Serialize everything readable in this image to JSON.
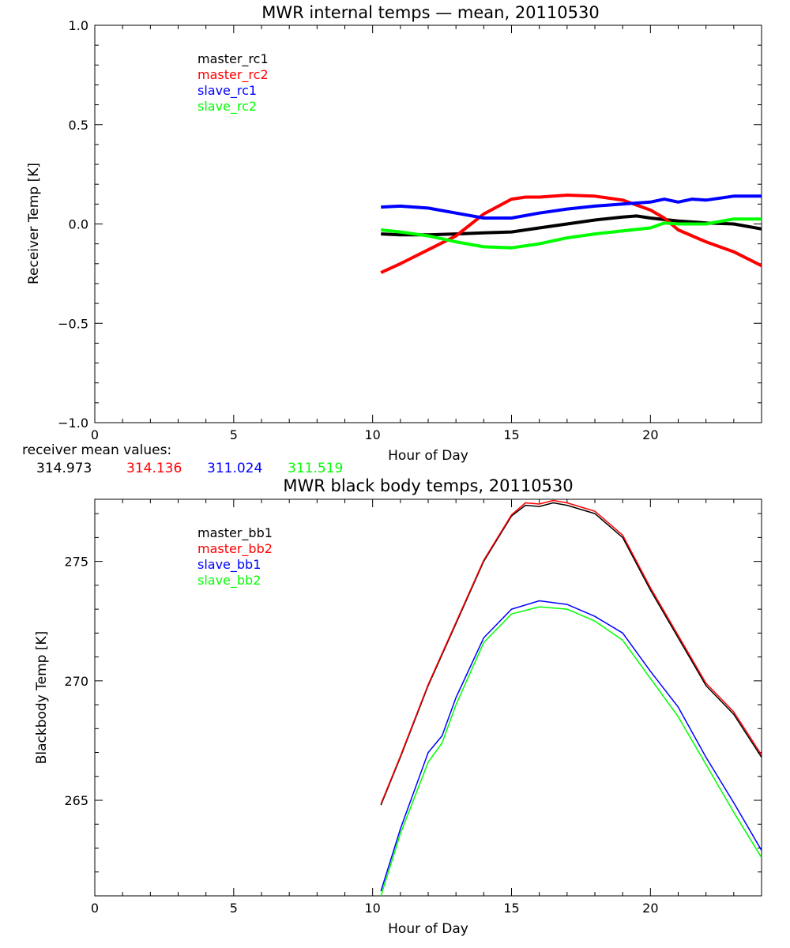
{
  "chart_data": [
    {
      "type": "line",
      "title": "MWR internal temps — mean, 20110530",
      "xlabel": "Hour of Day",
      "ylabel": "Receiver Temp [K]",
      "xlim": [
        0,
        24
      ],
      "ylim": [
        -1.0,
        1.0
      ],
      "x_ticks": [
        0,
        5,
        10,
        15,
        20
      ],
      "x_tick_labels": [
        "0",
        "5",
        "10",
        "15",
        "20"
      ],
      "y_ticks": [
        1.0,
        0.5,
        0.0,
        -0.5,
        -1.0
      ],
      "y_tick_labels": [
        "1.0",
        "0.5",
        "0.0",
        "−0.5",
        "−1.0"
      ],
      "grid": false,
      "legend_position": "top-left",
      "series": [
        {
          "name": "master_rc1",
          "color": "#000000",
          "x": [
            10.3,
            11,
            12,
            13,
            14,
            15,
            16,
            17,
            18,
            19,
            19.5,
            20,
            21,
            22,
            23,
            24
          ],
          "y": [
            -0.05,
            -0.055,
            -0.055,
            -0.05,
            -0.045,
            -0.04,
            -0.02,
            0.0,
            0.02,
            0.035,
            0.04,
            0.03,
            0.015,
            0.005,
            0.0,
            -0.025
          ]
        },
        {
          "name": "master_rc2",
          "color": "#ff0000",
          "x": [
            10.3,
            11,
            12,
            13,
            14,
            15,
            15.5,
            16,
            17,
            18,
            19,
            20,
            20.5,
            21,
            22,
            23,
            24
          ],
          "y": [
            -0.245,
            -0.2,
            -0.13,
            -0.06,
            0.05,
            0.125,
            0.135,
            0.135,
            0.145,
            0.14,
            0.12,
            0.07,
            0.03,
            -0.03,
            -0.09,
            -0.14,
            -0.21
          ]
        },
        {
          "name": "slave_rc1",
          "color": "#0000ff",
          "x": [
            10.3,
            11,
            12,
            13,
            14,
            15,
            16,
            17,
            18,
            19,
            20,
            20.5,
            21,
            21.5,
            22,
            23,
            24
          ],
          "y": [
            0.085,
            0.09,
            0.08,
            0.055,
            0.03,
            0.03,
            0.055,
            0.075,
            0.09,
            0.1,
            0.11,
            0.125,
            0.11,
            0.125,
            0.12,
            0.14,
            0.14
          ]
        },
        {
          "name": "slave_rc2",
          "color": "#00ff00",
          "x": [
            10.3,
            11,
            12,
            13,
            14,
            15,
            16,
            17,
            18,
            19,
            20,
            20.5,
            21,
            22,
            23,
            24
          ],
          "y": [
            -0.03,
            -0.04,
            -0.06,
            -0.09,
            -0.115,
            -0.12,
            -0.1,
            -0.07,
            -0.05,
            -0.035,
            -0.02,
            0.005,
            0.0,
            0.0,
            0.025,
            0.025
          ]
        }
      ]
    },
    {
      "type": "line",
      "title": "MWR black body temps, 20110530",
      "xlabel": "Hour of Day",
      "ylabel": "Blackbody Temp [K]",
      "xlim": [
        0,
        24
      ],
      "ylim": [
        261,
        277.6
      ],
      "x_ticks": [
        0,
        5,
        10,
        15,
        20
      ],
      "x_tick_labels": [
        "0",
        "5",
        "10",
        "15",
        "20"
      ],
      "y_ticks": [
        275,
        270,
        265
      ],
      "y_tick_labels": [
        "275",
        "270",
        "265"
      ],
      "grid": false,
      "legend_position": "top-left",
      "series": [
        {
          "name": "master_bb1",
          "color": "#000000",
          "x": [
            10.3,
            11,
            12,
            13,
            14,
            15,
            15.5,
            16,
            16.5,
            17,
            18,
            19,
            20,
            21,
            22,
            23,
            24
          ],
          "y": [
            264.8,
            266.8,
            269.8,
            272.4,
            275.0,
            276.9,
            277.35,
            277.3,
            277.45,
            277.35,
            277.0,
            276.0,
            273.8,
            271.8,
            269.8,
            268.6,
            266.8
          ]
        },
        {
          "name": "master_bb2",
          "color": "#ff0000",
          "x": [
            10.3,
            11,
            12,
            13,
            14,
            15,
            15.5,
            16,
            16.5,
            17,
            18,
            19,
            20,
            21,
            22,
            23,
            24
          ],
          "y": [
            264.85,
            266.85,
            269.85,
            272.45,
            275.05,
            276.95,
            277.45,
            277.4,
            277.55,
            277.45,
            277.1,
            276.1,
            273.9,
            271.9,
            269.9,
            268.7,
            266.9
          ]
        },
        {
          "name": "slave_bb1",
          "color": "#0000ff",
          "x": [
            10.3,
            11,
            12,
            12.5,
            13,
            14,
            15,
            16,
            17,
            18,
            19,
            20,
            21,
            22,
            23,
            24
          ],
          "y": [
            261.2,
            263.8,
            267.0,
            267.7,
            269.3,
            271.8,
            273.0,
            273.35,
            273.2,
            272.7,
            272.0,
            270.4,
            268.9,
            266.8,
            264.9,
            262.9
          ]
        },
        {
          "name": "slave_bb2",
          "color": "#00ff00",
          "x": [
            10.3,
            11,
            12,
            12.5,
            13,
            14,
            15,
            16,
            17,
            18,
            19,
            20,
            21,
            22,
            23,
            24
          ],
          "y": [
            261.0,
            263.6,
            266.6,
            267.4,
            269.0,
            271.6,
            272.8,
            273.1,
            273.0,
            272.5,
            271.7,
            270.1,
            268.5,
            266.5,
            264.5,
            262.6
          ]
        }
      ]
    }
  ],
  "receiver_mean": {
    "label": "receiver mean values:",
    "values": [
      {
        "text": "314.973",
        "color": "#000000"
      },
      {
        "text": "314.136",
        "color": "#ff0000"
      },
      {
        "text": "311.024",
        "color": "#0000ff"
      },
      {
        "text": "311.519",
        "color": "#00ff00"
      }
    ]
  }
}
